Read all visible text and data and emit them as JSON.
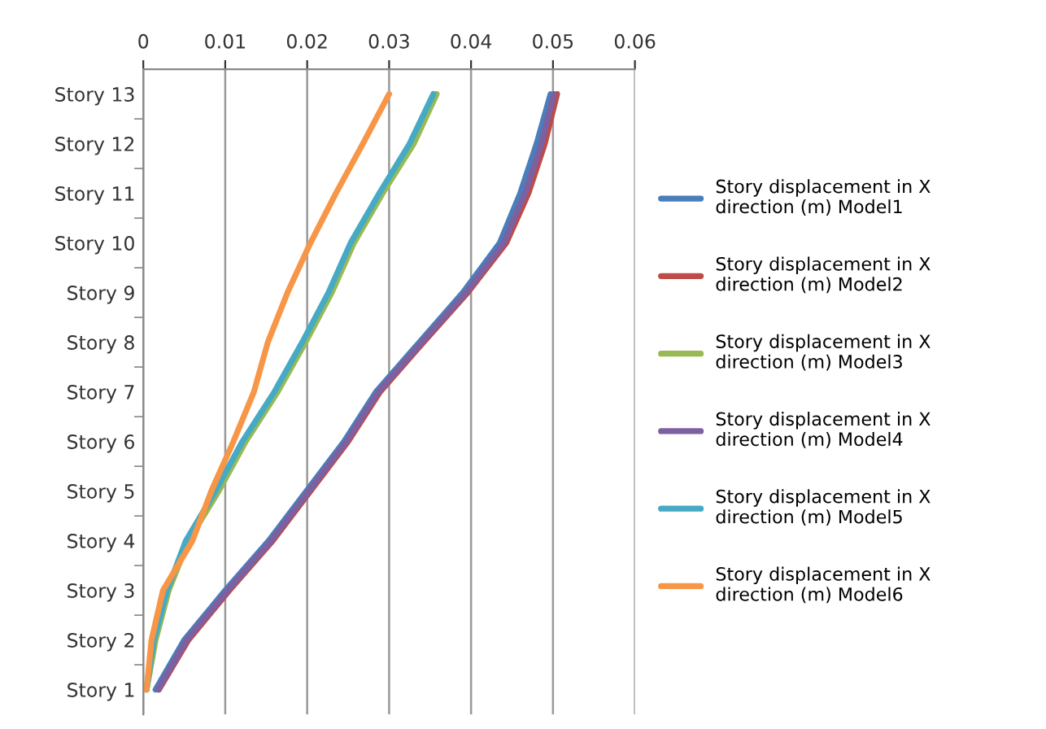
{
  "chart_data": {
    "type": "line",
    "orientation": "horizontal",
    "categories": [
      "Story 13",
      "Story 12",
      "Story 11",
      "Story 10",
      "Story 9",
      "Story 8",
      "Story 7",
      "Story 6",
      "Story 5",
      "Story 4",
      "Story 3",
      "Story 2",
      "Story 1"
    ],
    "series": [
      {
        "name": "Story displacement in X direction (m) Model1",
        "color": "#4a7ebb",
        "values": [
          0.0497,
          0.048,
          0.046,
          0.0435,
          0.039,
          0.0337,
          0.0284,
          0.0245,
          0.0199,
          0.0153,
          0.01,
          0.005,
          0.0015
        ]
      },
      {
        "name": "Story displacement in X direction (m) Model2",
        "color": "#be4b48",
        "values": [
          0.0505,
          0.049,
          0.047,
          0.0443,
          0.0396,
          0.0342,
          0.0289,
          0.025,
          0.0204,
          0.0158,
          0.0105,
          0.0055,
          0.0019
        ]
      },
      {
        "name": "Story displacement in X direction (m) Model3",
        "color": "#98b954",
        "values": [
          0.0358,
          0.033,
          0.0292,
          0.0257,
          0.023,
          0.0198,
          0.0164,
          0.0125,
          0.0092,
          0.0055,
          0.0031,
          0.0015,
          0.0004
        ]
      },
      {
        "name": "Story displacement in X direction (m) Model4",
        "color": "#7d60a0",
        "values": [
          0.0501,
          0.0486,
          0.0466,
          0.044,
          0.0394,
          0.034,
          0.0287,
          0.0248,
          0.0202,
          0.0156,
          0.0103,
          0.0053,
          0.0018
        ]
      },
      {
        "name": "Story displacement in X direction (m) Model5",
        "color": "#46aac5",
        "values": [
          0.0354,
          0.0325,
          0.0288,
          0.0253,
          0.0226,
          0.0194,
          0.016,
          0.0121,
          0.0088,
          0.0052,
          0.0029,
          0.0013,
          0.0004
        ]
      },
      {
        "name": "Story displacement in X direction (m) Model6",
        "color": "#f79646",
        "values": [
          0.03,
          0.0268,
          0.0235,
          0.0204,
          0.0176,
          0.0152,
          0.0135,
          0.011,
          0.0083,
          0.006,
          0.0024,
          0.001,
          0.0004
        ]
      }
    ],
    "xlim": [
      0,
      0.06
    ],
    "xticks": [
      0,
      0.01,
      0.02,
      0.03,
      0.04,
      0.05,
      0.06
    ],
    "grid": "x",
    "legend": "right",
    "marker": "none",
    "line_style": "solid"
  }
}
